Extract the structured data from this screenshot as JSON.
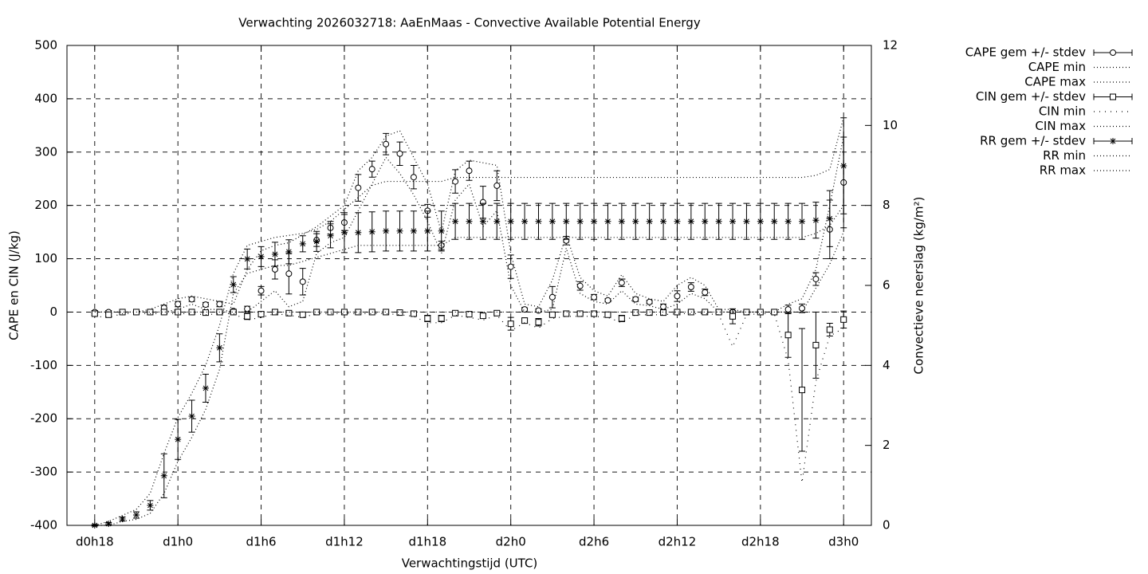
{
  "chart_data": {
    "type": "errorbar-line",
    "title": "Verwachting 2026032718: AaEnMaas - Convective Available Potential Energy",
    "xlabel": "Verwachtingstijd (UTC)",
    "ylabel": "CAPE en CIN (J/kg)",
    "y2label": "Convectieve neerslag (kg/m²)",
    "xlim": [
      16,
      74
    ],
    "xticks": [
      {
        "value": 18,
        "label": "d0h18"
      },
      {
        "value": 24,
        "label": "d1h0"
      },
      {
        "value": 30,
        "label": "d1h6"
      },
      {
        "value": 36,
        "label": "d1h12"
      },
      {
        "value": 42,
        "label": "d1h18"
      },
      {
        "value": 48,
        "label": "d2h0"
      },
      {
        "value": 54,
        "label": "d2h6"
      },
      {
        "value": 60,
        "label": "d2h12"
      },
      {
        "value": 66,
        "label": "d2h18"
      },
      {
        "value": 72,
        "label": "d3h0"
      }
    ],
    "ylim": [
      -400,
      500
    ],
    "yticks": [
      -400,
      -300,
      -200,
      -100,
      0,
      100,
      200,
      300,
      400,
      500
    ],
    "y2lim": [
      0,
      12
    ],
    "y2ticks": [
      0,
      2,
      4,
      6,
      8,
      10,
      12
    ],
    "grid": true,
    "legend": "outside-right",
    "x": [
      18,
      19,
      20,
      21,
      22,
      23,
      24,
      25,
      26,
      27,
      28,
      29,
      30,
      31,
      32,
      33,
      34,
      35,
      36,
      37,
      38,
      39,
      40,
      41,
      42,
      43,
      44,
      45,
      46,
      47,
      48,
      49,
      50,
      51,
      52,
      53,
      54,
      55,
      56,
      57,
      58,
      59,
      60,
      61,
      62,
      63,
      64,
      65,
      66,
      67,
      68,
      69,
      70,
      71,
      72
    ],
    "series": [
      {
        "name": "CAPE gem +/- stdev",
        "color": "#000000",
        "marker": "circle",
        "values": [
          0,
          0,
          0,
          0,
          0,
          8,
          15,
          24,
          14,
          15,
          2,
          6,
          40,
          80,
          72,
          57,
          135,
          158,
          168,
          233,
          268,
          315,
          297,
          253,
          190,
          125,
          245,
          265,
          206,
          237,
          85,
          5,
          3,
          28,
          134,
          49,
          28,
          22,
          55,
          24,
          19,
          10,
          30,
          47,
          37,
          0,
          0,
          0,
          0,
          0,
          5,
          7,
          62,
          155,
          243
        ],
        "errors": [
          3,
          3,
          2,
          2,
          2,
          5,
          5,
          4,
          4,
          5,
          3,
          5,
          8,
          18,
          38,
          25,
          12,
          12,
          15,
          25,
          15,
          20,
          22,
          22,
          12,
          8,
          22,
          18,
          30,
          28,
          22,
          3,
          3,
          20,
          8,
          8,
          5,
          3,
          7,
          4,
          3,
          5,
          10,
          8,
          6,
          3,
          3,
          2,
          2,
          2,
          8,
          8,
          12,
          55,
          85
        ]
      },
      {
        "name": "CAPE min",
        "color": "#000000",
        "dash": "dotted",
        "values": [
          0,
          0,
          0,
          0,
          0,
          0,
          5,
          15,
          5,
          5,
          0,
          0,
          20,
          40,
          10,
          20,
          110,
          130,
          140,
          190,
          240,
          290,
          260,
          220,
          170,
          110,
          210,
          240,
          160,
          190,
          50,
          0,
          0,
          5,
          120,
          35,
          20,
          15,
          40,
          15,
          12,
          5,
          15,
          35,
          25,
          0,
          0,
          0,
          0,
          0,
          0,
          0,
          45,
          90,
          150
        ]
      },
      {
        "name": "CAPE max",
        "color": "#000000",
        "dash": "dotted",
        "values": [
          0,
          0,
          0,
          0,
          5,
          15,
          25,
          30,
          25,
          20,
          15,
          80,
          115,
          125,
          130,
          145,
          160,
          180,
          200,
          265,
          290,
          330,
          340,
          290,
          240,
          150,
          265,
          285,
          280,
          275,
          110,
          15,
          10,
          60,
          145,
          65,
          40,
          30,
          70,
          35,
          25,
          20,
          50,
          65,
          50,
          5,
          5,
          0,
          0,
          0,
          15,
          25,
          80,
          200,
          330
        ]
      },
      {
        "name": "CIN gem +/- stdev",
        "color": "#000000",
        "marker": "square",
        "values": [
          -3,
          -5,
          0,
          0,
          0,
          0,
          0,
          0,
          -1,
          0,
          0,
          -8,
          -4,
          0,
          -2,
          -5,
          0,
          0,
          0,
          0,
          0,
          0,
          -1,
          -3,
          -12,
          -12,
          -2,
          -4,
          -7,
          -2,
          -22,
          -16,
          -19,
          -5,
          -3,
          -3,
          -3,
          -5,
          -12,
          -1,
          -1,
          -1,
          0,
          0,
          0,
          0,
          -8,
          0,
          0,
          0,
          -43,
          -146,
          -62,
          -33,
          -14
        ],
        "errors": [
          3,
          3,
          2,
          2,
          2,
          2,
          2,
          2,
          2,
          2,
          2,
          6,
          3,
          2,
          2,
          3,
          2,
          2,
          2,
          2,
          2,
          2,
          2,
          3,
          6,
          6,
          2,
          3,
          3,
          2,
          12,
          5,
          7,
          3,
          2,
          2,
          2,
          3,
          6,
          2,
          2,
          2,
          2,
          2,
          2,
          3,
          14,
          2,
          2,
          2,
          42,
          115,
          62,
          12,
          16
        ]
      },
      {
        "name": "CIN min",
        "color": "#000000",
        "dash": "sparse",
        "values": [
          -8,
          -10,
          -3,
          -3,
          -3,
          -3,
          -3,
          -3,
          -5,
          -3,
          -3,
          -15,
          -10,
          -3,
          -6,
          -10,
          -3,
          -3,
          -3,
          -3,
          -3,
          -3,
          -5,
          -8,
          -20,
          -20,
          -6,
          -10,
          -15,
          -6,
          -35,
          -20,
          -30,
          -12,
          -8,
          -8,
          -8,
          -10,
          -20,
          -5,
          -5,
          -5,
          -3,
          -3,
          -3,
          -5,
          -65,
          -5,
          -3,
          -3,
          -90,
          -320,
          -130,
          -45,
          -30
        ]
      },
      {
        "name": "CIN max",
        "color": "#000000",
        "dash": "dotted",
        "values": [
          0,
          0,
          0,
          0,
          0,
          0,
          0,
          0,
          0,
          0,
          0,
          0,
          0,
          0,
          0,
          0,
          0,
          0,
          0,
          0,
          0,
          0,
          0,
          0,
          0,
          0,
          0,
          0,
          0,
          0,
          0,
          0,
          0,
          0,
          0,
          0,
          0,
          0,
          0,
          0,
          0,
          0,
          0,
          0,
          0,
          0,
          0,
          0,
          0,
          0,
          0,
          0,
          0,
          0,
          0
        ]
      },
      {
        "name": "RR gem +/- stdev",
        "color": "#000000",
        "marker": "star",
        "axis": "y2",
        "values": [
          0,
          0.04,
          0.16,
          0.26,
          0.5,
          1.24,
          2.15,
          2.73,
          3.43,
          4.44,
          6.02,
          6.66,
          6.72,
          6.78,
          6.84,
          7.04,
          7.1,
          7.24,
          7.32,
          7.32,
          7.34,
          7.36,
          7.36,
          7.36,
          7.36,
          7.36,
          7.6,
          7.6,
          7.6,
          7.6,
          7.6,
          7.6,
          7.6,
          7.6,
          7.6,
          7.6,
          7.6,
          7.6,
          7.6,
          7.6,
          7.6,
          7.6,
          7.6,
          7.6,
          7.6,
          7.6,
          7.6,
          7.6,
          7.6,
          7.6,
          7.6,
          7.6,
          7.63,
          7.67,
          8.99
        ],
        "errors": [
          0.02,
          0.03,
          0.05,
          0.08,
          0.12,
          0.55,
          0.5,
          0.4,
          0.35,
          0.35,
          0.2,
          0.25,
          0.25,
          0.3,
          0.3,
          0.2,
          0.25,
          0.3,
          0.5,
          0.5,
          0.5,
          0.5,
          0.5,
          0.5,
          0.5,
          0.5,
          0.45,
          0.45,
          0.45,
          0.45,
          0.45,
          0.45,
          0.45,
          0.45,
          0.45,
          0.45,
          0.45,
          0.45,
          0.45,
          0.45,
          0.45,
          0.45,
          0.45,
          0.45,
          0.45,
          0.45,
          0.45,
          0.45,
          0.45,
          0.45,
          0.45,
          0.45,
          0.45,
          0.7,
          1.2
        ]
      },
      {
        "name": "RR min",
        "color": "#000000",
        "dash": "dotted",
        "axis": "y2",
        "values": [
          0,
          0,
          0.1,
          0.15,
          0.3,
          0.8,
          1.6,
          2.2,
          2.9,
          3.9,
          5.8,
          6.3,
          6.4,
          6.5,
          6.5,
          6.6,
          6.7,
          6.8,
          6.9,
          7.0,
          7.0,
          7.0,
          7.0,
          7.0,
          7.0,
          7.0,
          7.2,
          7.2,
          7.2,
          7.2,
          7.2,
          7.2,
          7.2,
          7.2,
          7.2,
          7.2,
          7.2,
          7.2,
          7.2,
          7.2,
          7.2,
          7.2,
          7.2,
          7.2,
          7.2,
          7.2,
          7.2,
          7.2,
          7.2,
          7.2,
          7.2,
          7.2,
          7.3,
          7.5,
          8.0
        ]
      },
      {
        "name": "RR max",
        "color": "#000000",
        "dash": "dotted",
        "axis": "y2",
        "values": [
          0,
          0.1,
          0.25,
          0.4,
          0.8,
          1.8,
          2.7,
          3.3,
          4.0,
          5.0,
          6.3,
          7.0,
          7.1,
          7.2,
          7.25,
          7.3,
          7.4,
          7.6,
          7.9,
          8.2,
          8.5,
          8.6,
          8.6,
          8.6,
          8.6,
          8.6,
          8.7,
          8.7,
          8.7,
          8.7,
          8.7,
          8.7,
          8.7,
          8.7,
          8.7,
          8.7,
          8.7,
          8.7,
          8.7,
          8.7,
          8.7,
          8.7,
          8.7,
          8.7,
          8.7,
          8.7,
          8.7,
          8.7,
          8.7,
          8.7,
          8.7,
          8.7,
          8.75,
          8.9,
          10.2
        ]
      }
    ]
  }
}
